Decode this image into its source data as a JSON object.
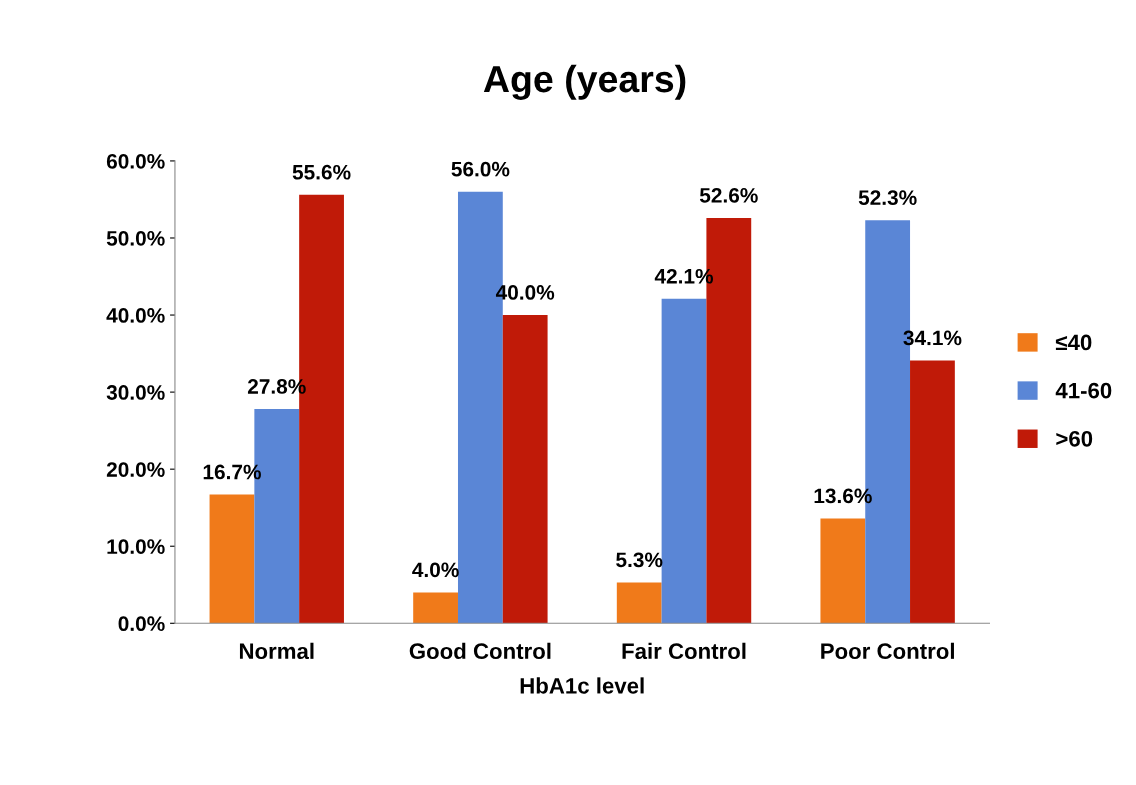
{
  "chart_data": {
    "type": "bar",
    "title": "Age (years)",
    "xlabel": "HbA1c level",
    "categories": [
      "Normal",
      "Good Control",
      "Fair Control",
      "Poor Control"
    ],
    "series": [
      {
        "name": "≤40",
        "color": "#f07a1a",
        "values": [
          16.7,
          4.0,
          5.3,
          13.6
        ],
        "value_labels": [
          "16.7%",
          "4.0%",
          "5.3%",
          "13.6%"
        ]
      },
      {
        "name": "41-60",
        "color": "#5a86d6",
        "values": [
          27.8,
          56.0,
          42.1,
          52.3
        ],
        "value_labels": [
          "27.8%",
          "56.0%",
          "42.1%",
          "52.3%"
        ]
      },
      {
        "name": ">60",
        "color": "#c01a08",
        "values": [
          55.6,
          40.0,
          52.6,
          34.1
        ],
        "value_labels": [
          "55.6%",
          "40.0%",
          "52.6%",
          "34.1%"
        ]
      }
    ],
    "ylim": [
      0,
      60
    ],
    "yticks": [
      {
        "value": 0,
        "label": "0.0%"
      },
      {
        "value": 10,
        "label": "10.0%"
      },
      {
        "value": 20,
        "label": "20.0%"
      },
      {
        "value": 30,
        "label": "30.0%"
      },
      {
        "value": 40,
        "label": "40.0%"
      },
      {
        "value": 50,
        "label": "50.0%"
      },
      {
        "value": 60,
        "label": "60.0%"
      }
    ],
    "grid": false,
    "legend": "right"
  }
}
